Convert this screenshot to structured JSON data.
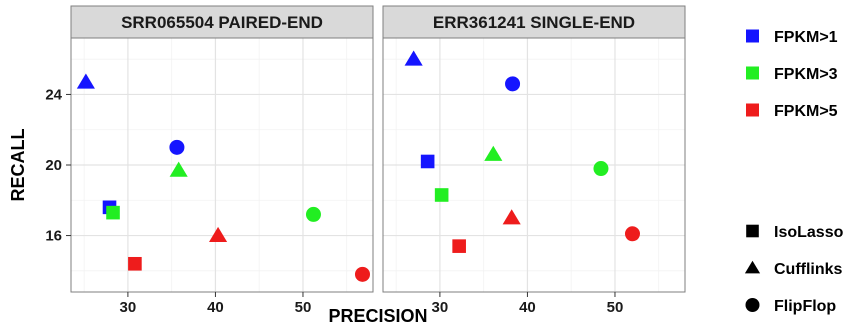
{
  "chart_data": {
    "type": "scatter",
    "xlabel": "PRECISION",
    "ylabel": "RECALL",
    "xlim": [
      23.5,
      58
    ],
    "ylim": [
      12.8,
      27.2
    ],
    "x_ticks": [
      30,
      40,
      50
    ],
    "y_ticks": [
      16,
      20,
      24
    ],
    "grid": true,
    "legend_position": "right",
    "colors": {
      "FPKM>1": "#1515ff",
      "FPKM>3": "#22ee22",
      "FPKM>5": "#ee1c1c"
    },
    "color_legend": [
      "FPKM>1",
      "FPKM>3",
      "FPKM>5"
    ],
    "shape_legend": [
      {
        "label": "IsoLasso",
        "shape": "square"
      },
      {
        "label": "Cufflinks",
        "shape": "triangle"
      },
      {
        "label": "FlipFlop",
        "shape": "circle"
      }
    ],
    "panels": [
      {
        "title": "SRR065504 PAIRED-END",
        "points": [
          {
            "x": 25.2,
            "y": 24.7,
            "group": "FPKM>1",
            "method": "Cufflinks"
          },
          {
            "x": 35.6,
            "y": 21.0,
            "group": "FPKM>1",
            "method": "FlipFlop"
          },
          {
            "x": 27.9,
            "y": 17.6,
            "group": "FPKM>1",
            "method": "IsoLasso"
          },
          {
            "x": 28.3,
            "y": 17.3,
            "group": "FPKM>3",
            "method": "IsoLasso"
          },
          {
            "x": 35.8,
            "y": 19.7,
            "group": "FPKM>3",
            "method": "Cufflinks"
          },
          {
            "x": 51.2,
            "y": 17.2,
            "group": "FPKM>3",
            "method": "FlipFlop"
          },
          {
            "x": 30.8,
            "y": 14.4,
            "group": "FPKM>5",
            "method": "IsoLasso"
          },
          {
            "x": 40.3,
            "y": 16.0,
            "group": "FPKM>5",
            "method": "Cufflinks"
          },
          {
            "x": 56.8,
            "y": 13.8,
            "group": "FPKM>5",
            "method": "FlipFlop"
          }
        ]
      },
      {
        "title": "ERR361241 SINGLE-END",
        "points": [
          {
            "x": 27.0,
            "y": 26.0,
            "group": "FPKM>1",
            "method": "Cufflinks"
          },
          {
            "x": 38.3,
            "y": 24.6,
            "group": "FPKM>1",
            "method": "FlipFlop"
          },
          {
            "x": 28.6,
            "y": 20.2,
            "group": "FPKM>1",
            "method": "IsoLasso"
          },
          {
            "x": 30.2,
            "y": 18.3,
            "group": "FPKM>3",
            "method": "IsoLasso"
          },
          {
            "x": 36.1,
            "y": 20.6,
            "group": "FPKM>3",
            "method": "Cufflinks"
          },
          {
            "x": 48.4,
            "y": 19.8,
            "group": "FPKM>3",
            "method": "FlipFlop"
          },
          {
            "x": 32.2,
            "y": 15.4,
            "group": "FPKM>5",
            "method": "IsoLasso"
          },
          {
            "x": 38.2,
            "y": 17.0,
            "group": "FPKM>5",
            "method": "Cufflinks"
          },
          {
            "x": 52.0,
            "y": 16.1,
            "group": "FPKM>5",
            "method": "FlipFlop"
          }
        ]
      }
    ]
  }
}
